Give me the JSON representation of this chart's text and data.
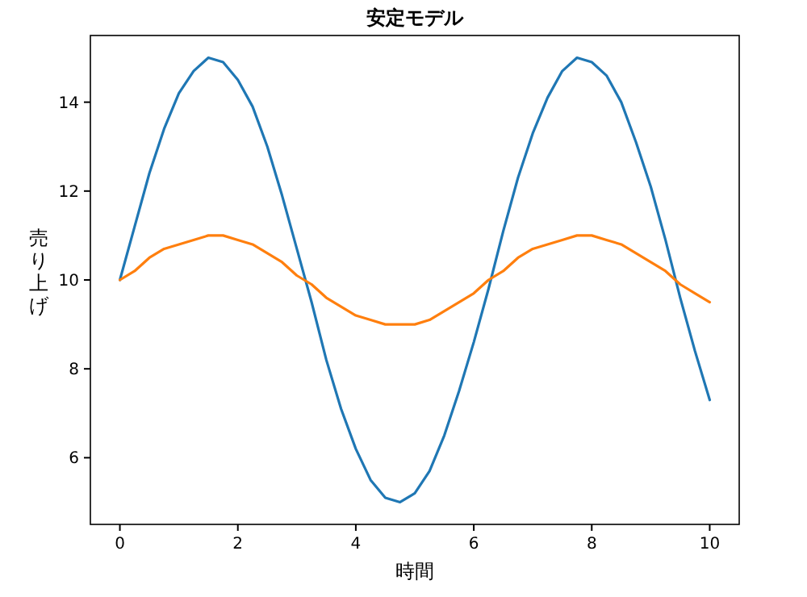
{
  "chart_data": {
    "type": "line",
    "title": "安定モデル",
    "xlabel": "時間",
    "ylabel": "売り上げ",
    "x": [
      0,
      0.25,
      0.5,
      0.75,
      1,
      1.25,
      1.5,
      1.75,
      2,
      2.25,
      2.5,
      2.75,
      3,
      3.25,
      3.5,
      3.75,
      4,
      4.25,
      4.5,
      4.75,
      5,
      5.25,
      5.5,
      5.75,
      6,
      6.25,
      6.5,
      6.75,
      7,
      7.25,
      7.5,
      7.75,
      8,
      8.25,
      8.5,
      8.75,
      9,
      9.25,
      9.5,
      9.75,
      10
    ],
    "series": [
      {
        "color": "#1f77b4",
        "values": [
          10,
          11.2,
          12.4,
          13.4,
          14.2,
          14.7,
          15.0,
          14.9,
          14.5,
          13.9,
          13.0,
          11.9,
          10.7,
          9.5,
          8.2,
          7.1,
          6.2,
          5.5,
          5.1,
          5.0,
          5.2,
          5.7,
          6.5,
          7.5,
          8.6,
          9.8,
          11.1,
          12.3,
          13.3,
          14.1,
          14.7,
          15.0,
          14.9,
          14.6,
          14.0,
          13.1,
          12.1,
          10.9,
          9.6,
          8.4,
          7.3
        ]
      },
      {
        "color": "#ff7f0e",
        "values": [
          10,
          10.2,
          10.5,
          10.7,
          10.8,
          10.9,
          11.0,
          11.0,
          10.9,
          10.8,
          10.6,
          10.4,
          10.1,
          9.9,
          9.6,
          9.4,
          9.2,
          9.1,
          9.0,
          9.0,
          9.0,
          9.1,
          9.3,
          9.5,
          9.7,
          10.0,
          10.2,
          10.5,
          10.7,
          10.8,
          10.9,
          11.0,
          11.0,
          10.9,
          10.8,
          10.6,
          10.4,
          10.2,
          9.9,
          9.7,
          9.5
        ]
      }
    ],
    "xlim": [
      -0.5,
      10.5
    ],
    "ylim": [
      4.5,
      15.5
    ],
    "xticks": [
      0,
      2,
      4,
      6,
      8,
      10
    ],
    "yticks": [
      6,
      8,
      10,
      12,
      14
    ],
    "grid": false,
    "marker": "none",
    "line_style": "solid"
  }
}
